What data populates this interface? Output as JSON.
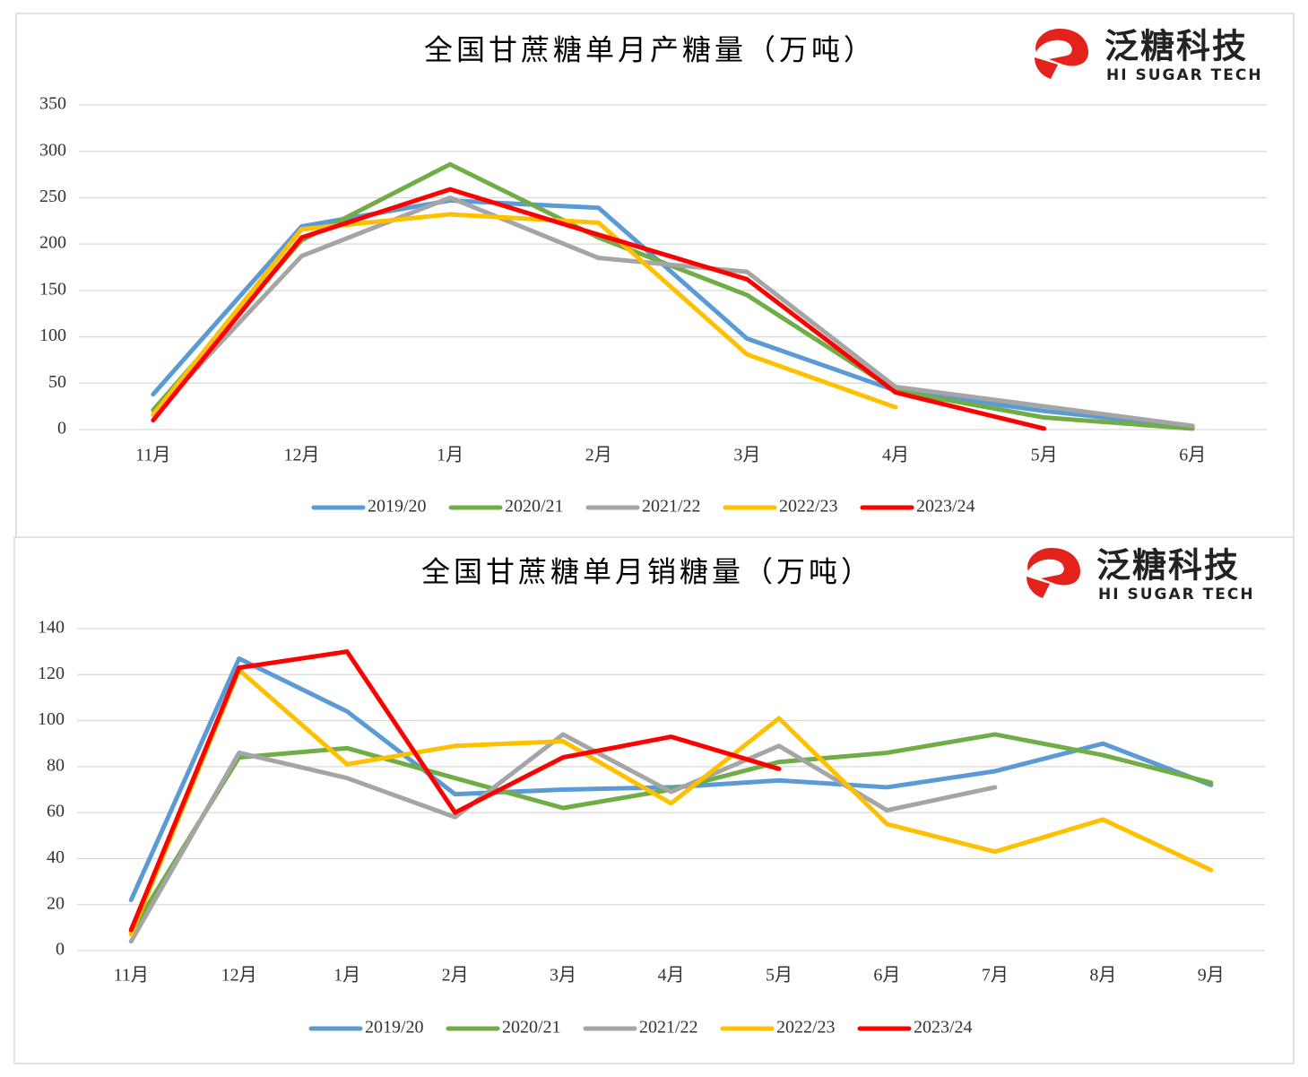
{
  "chart_data": [
    {
      "type": "line",
      "title": "全国甘蔗糖单月产糖量（万吨）",
      "logo_text": "泛糖科技",
      "logo_subtext": "HI SUGAR TECH",
      "categories": [
        "11月",
        "12月",
        "1月",
        "2月",
        "3月",
        "4月",
        "5月",
        "6月"
      ],
      "ylim": [
        0,
        350
      ],
      "yticks": [
        0,
        50,
        100,
        150,
        200,
        250,
        300,
        350
      ],
      "grid": true,
      "legend": "bottom",
      "series": [
        {
          "name": "2019/20",
          "color": "#5b9bd5",
          "values": [
            38,
            219,
            247,
            239,
            98,
            42,
            20,
            3
          ]
        },
        {
          "name": "2020/21",
          "color": "#70ad47",
          "values": [
            21,
            204,
            286,
            207,
            145,
            42,
            13,
            1
          ]
        },
        {
          "name": "2021/22",
          "color": "#a5a5a5",
          "values": [
            16,
            187,
            250,
            185,
            170,
            46,
            25,
            4
          ]
        },
        {
          "name": "2022/23",
          "color": "#ffc000",
          "values": [
            16,
            216,
            232,
            223,
            81,
            24,
            null,
            null
          ]
        },
        {
          "name": "2023/24",
          "color": "#ff0000",
          "values": [
            10,
            207,
            259,
            210,
            162,
            40,
            1,
            null
          ]
        }
      ]
    },
    {
      "type": "line",
      "title": "全国甘蔗糖单月销糖量（万吨）",
      "logo_text": "泛糖科技",
      "logo_subtext": "HI SUGAR TECH",
      "categories": [
        "11月",
        "12月",
        "1月",
        "2月",
        "3月",
        "4月",
        "5月",
        "6月",
        "7月",
        "8月",
        "9月"
      ],
      "ylim": [
        0,
        140
      ],
      "yticks": [
        0,
        20,
        40,
        60,
        80,
        100,
        120,
        140
      ],
      "grid": true,
      "legend": "bottom",
      "series": [
        {
          "name": "2019/20",
          "color": "#5b9bd5",
          "values": [
            22,
            127,
            104,
            68,
            70,
            71,
            74,
            71,
            78,
            90,
            72
          ]
        },
        {
          "name": "2020/21",
          "color": "#70ad47",
          "values": [
            8,
            84,
            88,
            75,
            62,
            70,
            82,
            86,
            94,
            85,
            73
          ]
        },
        {
          "name": "2021/22",
          "color": "#a5a5a5",
          "values": [
            4,
            86,
            75,
            58,
            94,
            69,
            89,
            61,
            71,
            null,
            null
          ]
        },
        {
          "name": "2022/23",
          "color": "#ffc000",
          "values": [
            7,
            122,
            81,
            89,
            91,
            64,
            101,
            55,
            43,
            57,
            35
          ]
        },
        {
          "name": "2023/24",
          "color": "#ff0000",
          "values": [
            9,
            123,
            130,
            60,
            84,
            93,
            79,
            null,
            null,
            null,
            null
          ]
        }
      ]
    }
  ]
}
